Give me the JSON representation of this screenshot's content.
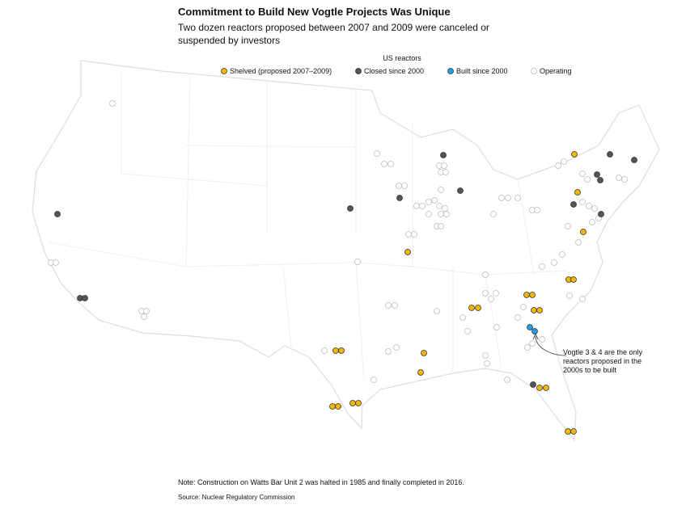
{
  "title": "Commitment to Build New Vogtle Projects Was Unique",
  "subtitle": [
    "Two dozen reactors proposed between 2007 and 2009 were canceled or",
    "suspended by investors"
  ],
  "legend": {
    "title": "US reactors",
    "items": [
      {
        "label": "Shelved (proposed 2007–2009)",
        "color": "#f2b705"
      },
      {
        "label": "Closed since 2000",
        "color": "#555555"
      },
      {
        "label": "Built since 2000",
        "color": "#1ea0e6"
      },
      {
        "label": "Operating",
        "color": "#ffffff"
      }
    ]
  },
  "annotation": [
    "Vogtle 3 & 4 are the only",
    "reactors proposed in the",
    "2000s to be built"
  ],
  "note": "Note: Construction on Watts Bar Unit 2 was halted in 1985 and finally completed in 2016.",
  "source": "Source: Nuclear Regulatory Commission"
}
